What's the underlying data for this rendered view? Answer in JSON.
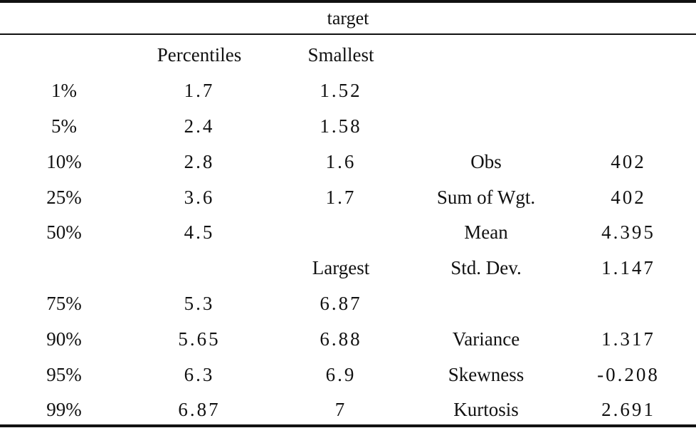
{
  "title": "target",
  "headers": [
    "",
    "Percentiles",
    "Smallest",
    "",
    ""
  ],
  "rows": [
    [
      "1%",
      "1.7",
      "1.52",
      "",
      ""
    ],
    [
      "5%",
      "2.4",
      "1.58",
      "",
      ""
    ],
    [
      "10%",
      "2.8",
      "1.6",
      "Obs",
      "402"
    ],
    [
      "25%",
      "3.6",
      "1.7",
      "Sum of Wgt.",
      "402"
    ],
    [
      "50%",
      "4.5",
      "",
      "Mean",
      "4.395"
    ],
    [
      "",
      "",
      "Largest",
      "Std. Dev.",
      "1.147"
    ],
    [
      "75%",
      "5.3",
      "6.87",
      "",
      ""
    ],
    [
      "90%",
      "5.65",
      "6.88",
      "Variance",
      "1.317"
    ],
    [
      "95%",
      "6.3",
      "6.9",
      "Skewness",
      "-0.208"
    ],
    [
      "99%",
      "6.87",
      "7",
      "Kurtosis",
      "2.691"
    ]
  ]
}
